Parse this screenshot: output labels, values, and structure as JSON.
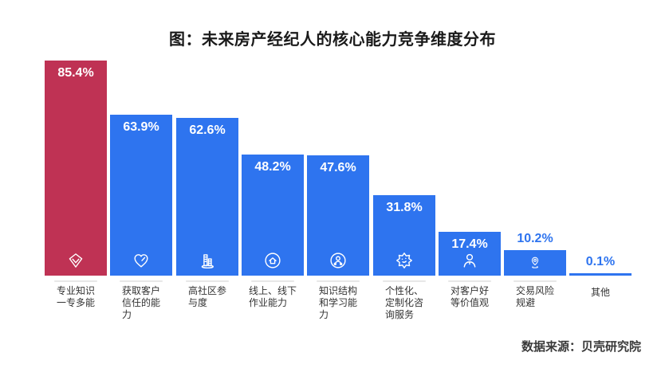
{
  "title": "图：未来房产经纪人的核心能力竞争维度分布",
  "source": "数据来源：贝壳研究院",
  "colors": {
    "highlight_bar": "#BF3254",
    "bar": "#2E74EF",
    "value_text_inside": "#FFFFFF",
    "value_text_outside": "#2E74EF",
    "axis_label_text": "#333333",
    "title_text": "#1A1A1A"
  },
  "chart_data": {
    "type": "bar",
    "title": "图：未来房产经纪人的核心能力竞争维度分布",
    "xlabel": "",
    "ylabel": "",
    "ylim": [
      0,
      90
    ],
    "grid": false,
    "legend": null,
    "categories": [
      "专业知识一专多能",
      "获取客户信任的能力",
      "高社区参与度",
      "线上、线下作业能力",
      "知识结构和学习能力",
      "个性化、定制化咨询服务",
      "对客户好等价值观",
      "交易风险规避",
      "其他"
    ],
    "values": [
      85.4,
      63.9,
      62.6,
      48.2,
      47.6,
      31.8,
      17.4,
      10.2,
      0.1
    ],
    "bars": [
      {
        "label": "专业知识\n一专多能",
        "value": 85.4,
        "value_label": "85.4%",
        "color": "#BF3254",
        "icon": "gem-icon"
      },
      {
        "label": "获取客户\n信任的能\n力",
        "value": 63.9,
        "value_label": "63.9%",
        "color": "#2E74EF",
        "icon": "heart-icon"
      },
      {
        "label": "高社区参\n与度",
        "value": 62.6,
        "value_label": "62.6%",
        "color": "#2E74EF",
        "icon": "buildings-icon"
      },
      {
        "label": "线上、线下\n作业能力",
        "value": 48.2,
        "value_label": "48.2%",
        "color": "#2E74EF",
        "icon": "home-circle-icon"
      },
      {
        "label": "知识结构\n和学习能\n力",
        "value": 47.6,
        "value_label": "47.6%",
        "color": "#2E74EF",
        "icon": "person-network-icon"
      },
      {
        "label": "个性化、\n定制化咨\n询服务",
        "value": 31.8,
        "value_label": "31.8%",
        "color": "#2E74EF",
        "icon": "badge-star-icon"
      },
      {
        "label": "对客户好\n等价值观",
        "value": 17.4,
        "value_label": "17.4%",
        "color": "#2E74EF",
        "icon": "person-icon"
      },
      {
        "label": "交易风险\n规避",
        "value": 10.2,
        "value_label": "10.2%",
        "color": "#2E74EF",
        "icon": "location-pin-icon"
      },
      {
        "label": "其他",
        "value": 0.1,
        "value_label": "0.1%",
        "color": "#2E74EF",
        "icon": null
      }
    ]
  }
}
